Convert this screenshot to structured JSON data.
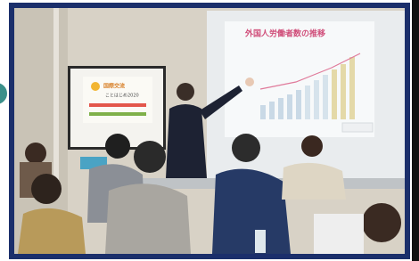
{
  "slide": {
    "title": "外国人労働者数の推移"
  },
  "poster": {
    "title": "国際交流",
    "subtitle": "ことはじめ2020"
  }
}
